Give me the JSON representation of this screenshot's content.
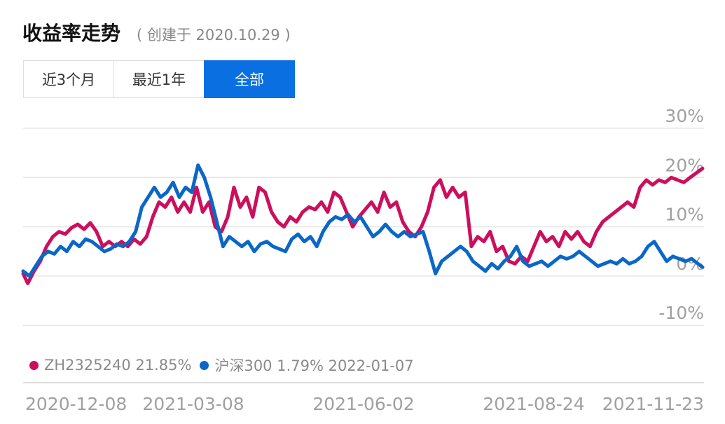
{
  "header": {
    "title": "收益率走势",
    "subtitle": "( 创建于 2020.10.29 )"
  },
  "tabs": [
    {
      "label": "近3个月"
    },
    {
      "label": "最近1年"
    },
    {
      "label": "全部"
    }
  ],
  "active_tab": 2,
  "legend": {
    "series1": "ZH2325240 21.85%",
    "series2": "沪深300 1.79% 2022-01-07"
  },
  "colors": {
    "series1": "#cc0f5c",
    "series2": "#0a67c8",
    "grid": "#e6e6e6",
    "axis_text": "#a0a0a0",
    "tab_active": "#0a6fe0"
  },
  "chart_data": {
    "type": "line",
    "y_ticks": [
      "30%",
      "20%",
      "10%",
      "0%",
      "-10%"
    ],
    "ylim": [
      -10,
      30
    ],
    "x_tick_labels": [
      "2020-12-08",
      "2021-03-08",
      "2021-06-02",
      "2021-08-24",
      "2021-11-23"
    ],
    "x_tick_dates": [
      "2020-12-08",
      "2021-03-08",
      "2021-06-02",
      "2021-08-24",
      "2021-11-23"
    ],
    "xlim": [
      "2020-10-29",
      "2022-01-07"
    ],
    "series": [
      {
        "name": "ZH2325240",
        "color": "#cc0f5c",
        "points": [
          [
            "2020-10-29",
            0.5
          ],
          [
            "2020-11-01",
            -1.5
          ],
          [
            "2020-11-05",
            1
          ],
          [
            "2020-11-09",
            3
          ],
          [
            "2020-11-13",
            6
          ],
          [
            "2020-11-17",
            8
          ],
          [
            "2020-11-21",
            9
          ],
          [
            "2020-11-25",
            8.5
          ],
          [
            "2020-11-29",
            9.8
          ],
          [
            "2020-12-03",
            10.5
          ],
          [
            "2020-12-07",
            9.5
          ],
          [
            "2020-12-11",
            10.8
          ],
          [
            "2020-12-15",
            9
          ],
          [
            "2020-12-19",
            6
          ],
          [
            "2020-12-23",
            7
          ],
          [
            "2020-12-27",
            6
          ],
          [
            "2020-12-31",
            7
          ],
          [
            "2021-01-04",
            6
          ],
          [
            "2021-01-08",
            7.5
          ],
          [
            "2021-01-12",
            6.5
          ],
          [
            "2021-01-16",
            8
          ],
          [
            "2021-01-20",
            12
          ],
          [
            "2021-01-24",
            15
          ],
          [
            "2021-01-28",
            14
          ],
          [
            "2021-02-01",
            16
          ],
          [
            "2021-02-05",
            13
          ],
          [
            "2021-02-09",
            15
          ],
          [
            "2021-02-13",
            13
          ],
          [
            "2021-02-17",
            18
          ],
          [
            "2021-02-21",
            13
          ],
          [
            "2021-02-25",
            15
          ],
          [
            "2021-03-01",
            10
          ],
          [
            "2021-03-05",
            9
          ],
          [
            "2021-03-09",
            12
          ],
          [
            "2021-03-13",
            18
          ],
          [
            "2021-03-17",
            14
          ],
          [
            "2021-03-21",
            16
          ],
          [
            "2021-03-25",
            12
          ],
          [
            "2021-03-29",
            18
          ],
          [
            "2021-04-02",
            17
          ],
          [
            "2021-04-06",
            13
          ],
          [
            "2021-04-10",
            11
          ],
          [
            "2021-04-14",
            10
          ],
          [
            "2021-04-18",
            12
          ],
          [
            "2021-04-22",
            11
          ],
          [
            "2021-04-26",
            13
          ],
          [
            "2021-04-30",
            14
          ],
          [
            "2021-05-04",
            13.5
          ],
          [
            "2021-05-08",
            15
          ],
          [
            "2021-05-12",
            13
          ],
          [
            "2021-05-16",
            17
          ],
          [
            "2021-05-20",
            16
          ],
          [
            "2021-05-24",
            13
          ],
          [
            "2021-05-28",
            10
          ],
          [
            "2021-06-01",
            12
          ],
          [
            "2021-06-05",
            13.5
          ],
          [
            "2021-06-09",
            15
          ],
          [
            "2021-06-13",
            13
          ],
          [
            "2021-06-17",
            17
          ],
          [
            "2021-06-21",
            14
          ],
          [
            "2021-06-25",
            15
          ],
          [
            "2021-06-29",
            11
          ],
          [
            "2021-07-03",
            9
          ],
          [
            "2021-07-07",
            8
          ],
          [
            "2021-07-11",
            10
          ],
          [
            "2021-07-15",
            13
          ],
          [
            "2021-07-19",
            18
          ],
          [
            "2021-07-23",
            19.5
          ],
          [
            "2021-07-27",
            16
          ],
          [
            "2021-07-31",
            18
          ],
          [
            "2021-08-04",
            16
          ],
          [
            "2021-08-08",
            17
          ],
          [
            "2021-08-12",
            6
          ],
          [
            "2021-08-16",
            8
          ],
          [
            "2021-08-20",
            7
          ],
          [
            "2021-08-24",
            9
          ],
          [
            "2021-08-28",
            5
          ],
          [
            "2021-09-01",
            6
          ],
          [
            "2021-09-05",
            3
          ],
          [
            "2021-09-09",
            2.5
          ],
          [
            "2021-09-13",
            4
          ],
          [
            "2021-09-17",
            3
          ],
          [
            "2021-09-21",
            6
          ],
          [
            "2021-09-25",
            9
          ],
          [
            "2021-09-29",
            7
          ],
          [
            "2021-10-03",
            8
          ],
          [
            "2021-10-07",
            6
          ],
          [
            "2021-10-11",
            9
          ],
          [
            "2021-10-15",
            7.5
          ],
          [
            "2021-10-19",
            9
          ],
          [
            "2021-10-23",
            7
          ],
          [
            "2021-10-27",
            6
          ],
          [
            "2021-10-31",
            9
          ],
          [
            "2021-11-04",
            11
          ],
          [
            "2021-11-08",
            12
          ],
          [
            "2021-11-12",
            13
          ],
          [
            "2021-11-16",
            14
          ],
          [
            "2021-11-20",
            15
          ],
          [
            "2021-11-24",
            14
          ],
          [
            "2021-11-28",
            18
          ],
          [
            "2021-12-02",
            19.5
          ],
          [
            "2021-12-06",
            18.5
          ],
          [
            "2021-12-10",
            19.5
          ],
          [
            "2021-12-14",
            19
          ],
          [
            "2021-12-18",
            20
          ],
          [
            "2021-12-22",
            19.5
          ],
          [
            "2021-12-26",
            19
          ],
          [
            "2021-12-30",
            20
          ],
          [
            "2022-01-07",
            21.85
          ]
        ]
      },
      {
        "name": "沪深300",
        "color": "#0a67c8",
        "points": [
          [
            "2020-10-29",
            1
          ],
          [
            "2020-11-02",
            0
          ],
          [
            "2020-11-06",
            2
          ],
          [
            "2020-11-10",
            4
          ],
          [
            "2020-11-14",
            5
          ],
          [
            "2020-11-18",
            4.5
          ],
          [
            "2020-11-22",
            6
          ],
          [
            "2020-11-26",
            5
          ],
          [
            "2020-11-30",
            7
          ],
          [
            "2020-12-04",
            6
          ],
          [
            "2020-12-08",
            7.5
          ],
          [
            "2020-12-12",
            7
          ],
          [
            "2020-12-16",
            6
          ],
          [
            "2020-12-20",
            5
          ],
          [
            "2020-12-24",
            5.5
          ],
          [
            "2020-12-28",
            6.5
          ],
          [
            "2021-01-01",
            6
          ],
          [
            "2021-01-05",
            7
          ],
          [
            "2021-01-09",
            9
          ],
          [
            "2021-01-13",
            14
          ],
          [
            "2021-01-17",
            16
          ],
          [
            "2021-01-21",
            18
          ],
          [
            "2021-01-25",
            16
          ],
          [
            "2021-01-29",
            17
          ],
          [
            "2021-02-02",
            19
          ],
          [
            "2021-02-06",
            16
          ],
          [
            "2021-02-10",
            18
          ],
          [
            "2021-02-14",
            17
          ],
          [
            "2021-02-18",
            22.5
          ],
          [
            "2021-02-22",
            20
          ],
          [
            "2021-02-26",
            16
          ],
          [
            "2021-03-02",
            11
          ],
          [
            "2021-03-06",
            6
          ],
          [
            "2021-03-10",
            8
          ],
          [
            "2021-03-14",
            7
          ],
          [
            "2021-03-18",
            6
          ],
          [
            "2021-03-22",
            7
          ],
          [
            "2021-03-26",
            5
          ],
          [
            "2021-03-30",
            6.5
          ],
          [
            "2021-04-03",
            7
          ],
          [
            "2021-04-07",
            6
          ],
          [
            "2021-04-11",
            5.5
          ],
          [
            "2021-04-15",
            5
          ],
          [
            "2021-04-19",
            7.5
          ],
          [
            "2021-04-23",
            8.5
          ],
          [
            "2021-04-27",
            7
          ],
          [
            "2021-05-01",
            8
          ],
          [
            "2021-05-05",
            6
          ],
          [
            "2021-05-09",
            9
          ],
          [
            "2021-05-13",
            11
          ],
          [
            "2021-05-17",
            12
          ],
          [
            "2021-05-21",
            11.5
          ],
          [
            "2021-05-25",
            12.5
          ],
          [
            "2021-05-29",
            11
          ],
          [
            "2021-06-02",
            12
          ],
          [
            "2021-06-06",
            10
          ],
          [
            "2021-06-10",
            8
          ],
          [
            "2021-06-14",
            9
          ],
          [
            "2021-06-18",
            10.5
          ],
          [
            "2021-06-22",
            9
          ],
          [
            "2021-06-26",
            8
          ],
          [
            "2021-06-30",
            9
          ],
          [
            "2021-07-04",
            8
          ],
          [
            "2021-07-08",
            8.5
          ],
          [
            "2021-07-12",
            9
          ],
          [
            "2021-07-16",
            5
          ],
          [
            "2021-07-20",
            0.5
          ],
          [
            "2021-07-24",
            3
          ],
          [
            "2021-07-28",
            4
          ],
          [
            "2021-08-01",
            5
          ],
          [
            "2021-08-05",
            6
          ],
          [
            "2021-08-09",
            5
          ],
          [
            "2021-08-13",
            3
          ],
          [
            "2021-08-17",
            2
          ],
          [
            "2021-08-21",
            1
          ],
          [
            "2021-08-25",
            2.5
          ],
          [
            "2021-08-29",
            1.5
          ],
          [
            "2021-09-02",
            3
          ],
          [
            "2021-09-06",
            4
          ],
          [
            "2021-09-10",
            6
          ],
          [
            "2021-09-14",
            3
          ],
          [
            "2021-09-18",
            2
          ],
          [
            "2021-09-22",
            2.5
          ],
          [
            "2021-09-26",
            3
          ],
          [
            "2021-09-30",
            2
          ],
          [
            "2021-10-04",
            3
          ],
          [
            "2021-10-08",
            4
          ],
          [
            "2021-10-12",
            3.5
          ],
          [
            "2021-10-16",
            4
          ],
          [
            "2021-10-20",
            5
          ],
          [
            "2021-10-24",
            4
          ],
          [
            "2021-10-28",
            3
          ],
          [
            "2021-11-01",
            2
          ],
          [
            "2021-11-05",
            2.5
          ],
          [
            "2021-11-09",
            3
          ],
          [
            "2021-11-13",
            2.5
          ],
          [
            "2021-11-17",
            3.5
          ],
          [
            "2021-11-21",
            2.5
          ],
          [
            "2021-11-25",
            3
          ],
          [
            "2021-11-29",
            4
          ],
          [
            "2021-12-03",
            6
          ],
          [
            "2021-12-07",
            7
          ],
          [
            "2021-12-11",
            5
          ],
          [
            "2021-12-15",
            3
          ],
          [
            "2021-12-19",
            4
          ],
          [
            "2021-12-23",
            3.5
          ],
          [
            "2021-12-27",
            3
          ],
          [
            "2021-12-31",
            3.5
          ],
          [
            "2022-01-07",
            1.79
          ]
        ]
      }
    ]
  }
}
